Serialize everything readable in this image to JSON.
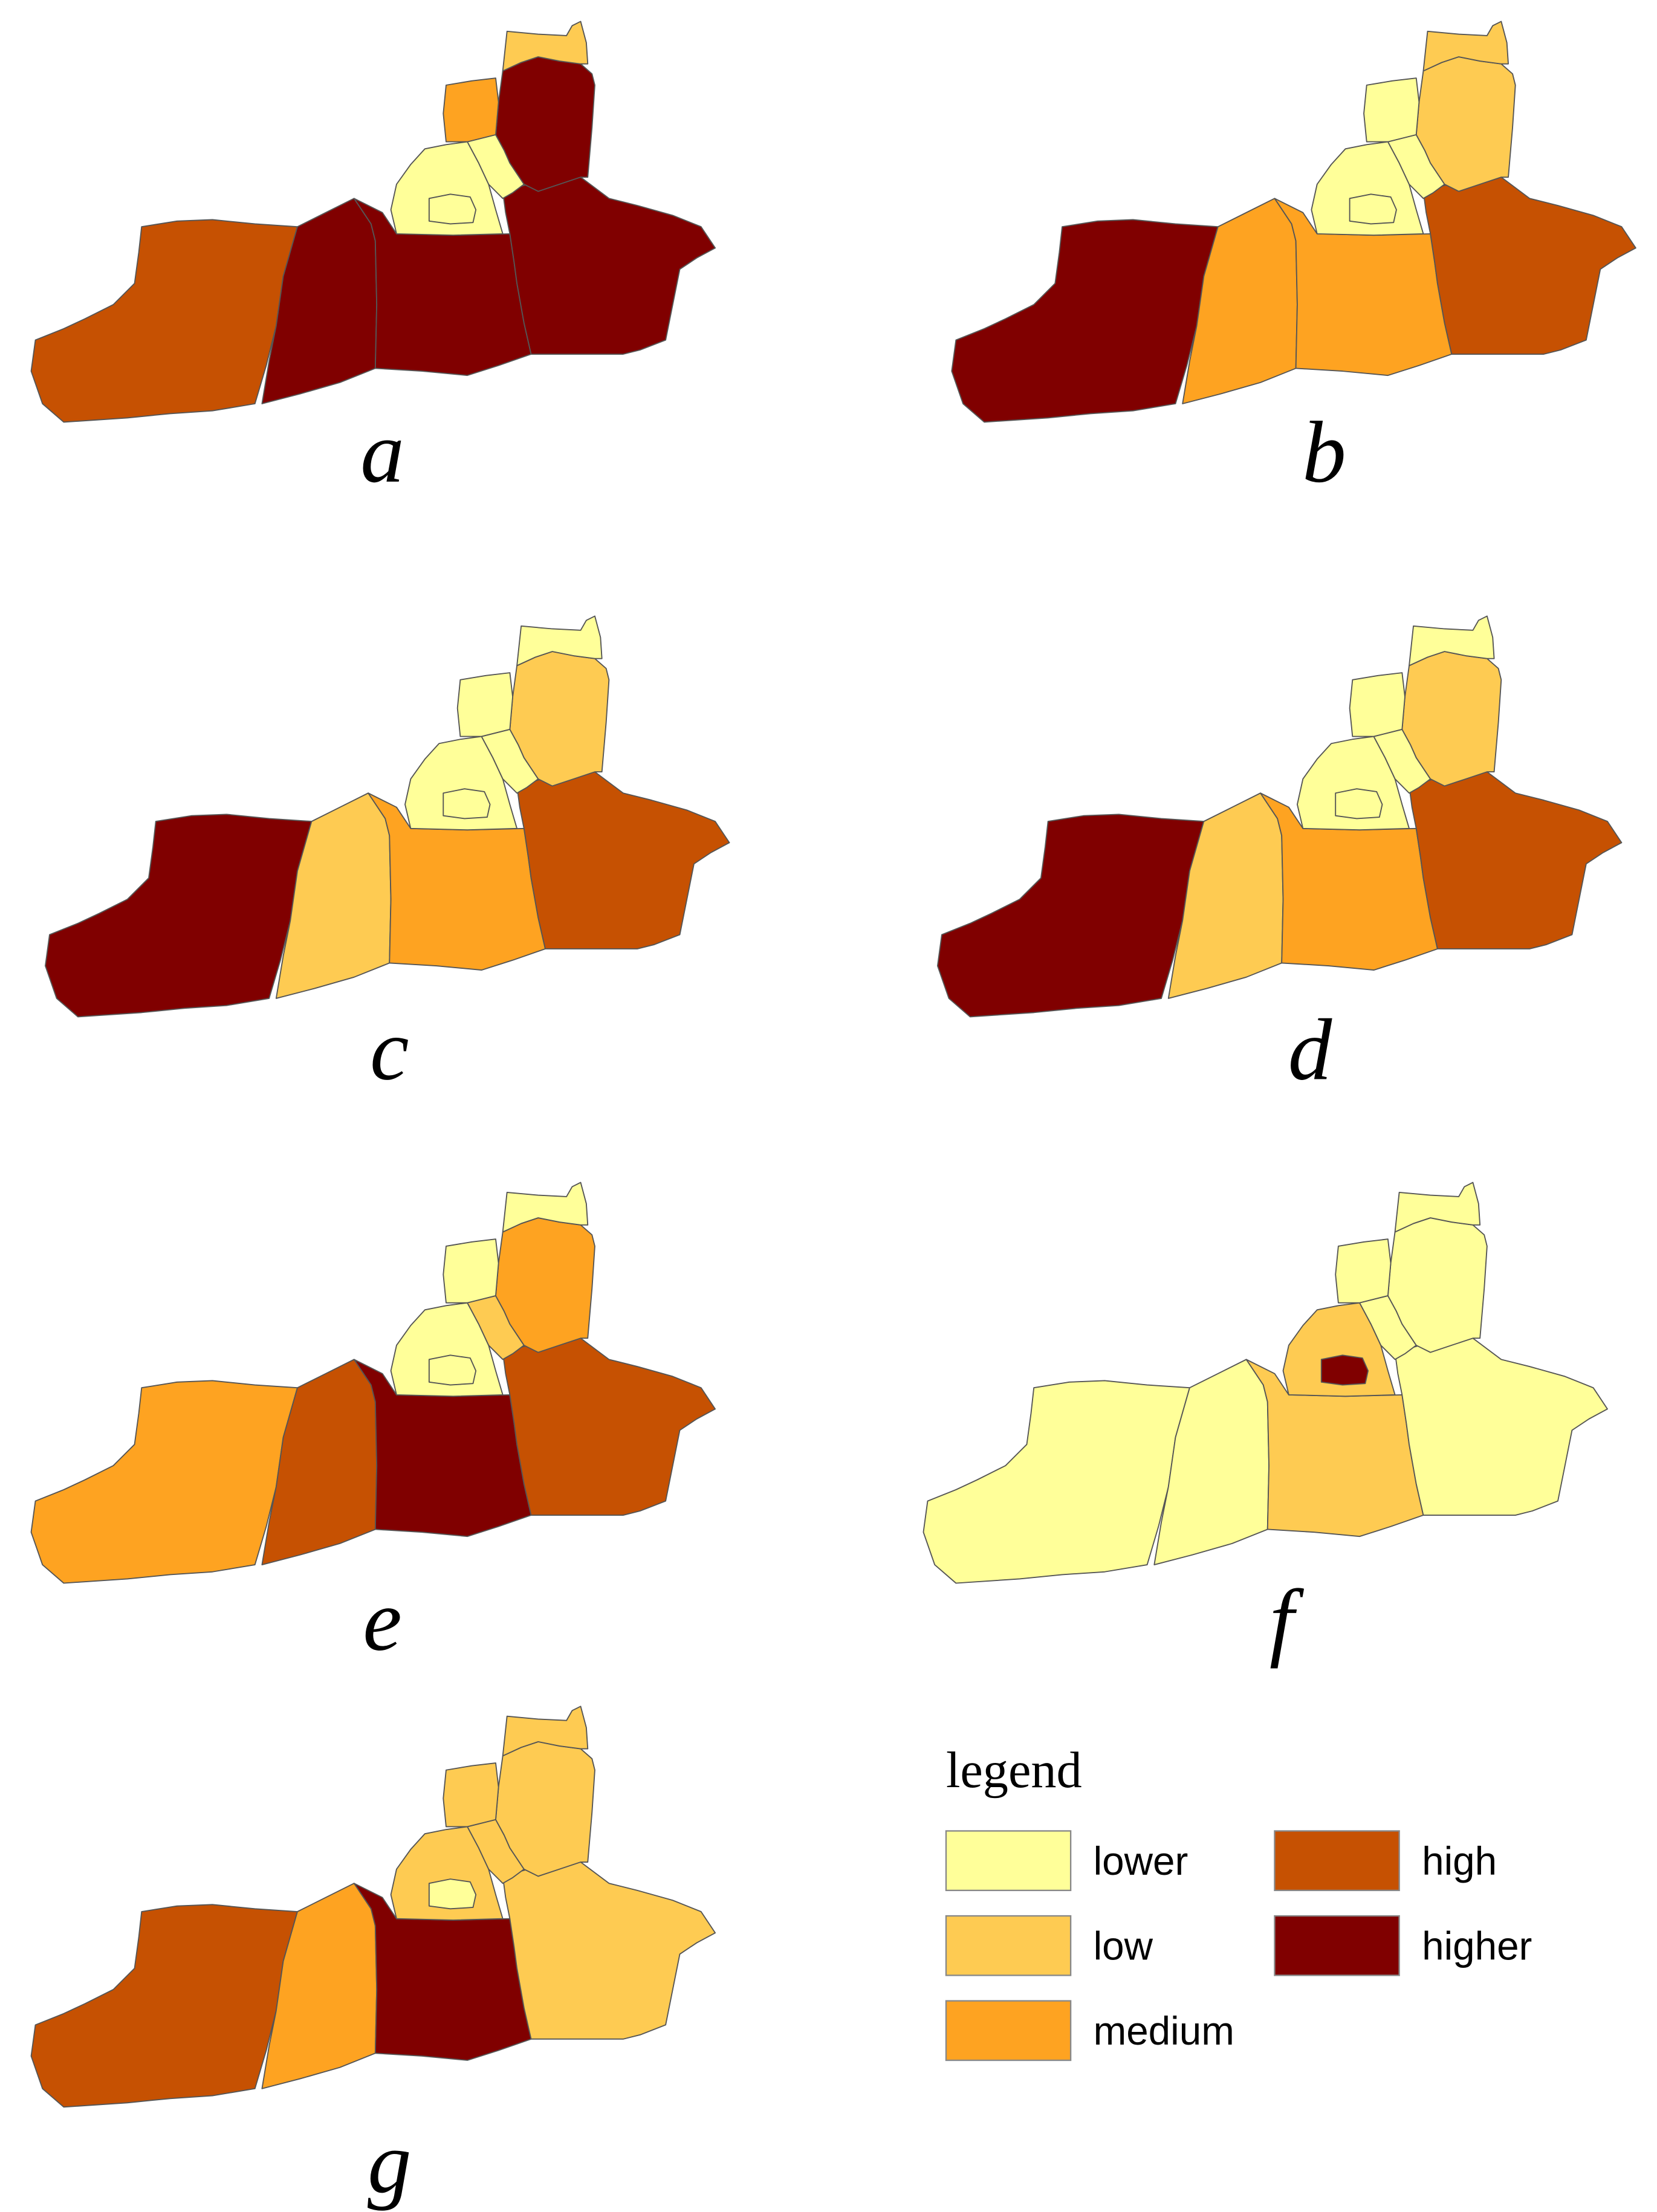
{
  "panels": [
    {
      "label": "a",
      "fills": [
        "#c65102",
        "#800000",
        "#800000",
        "#800000",
        "#ffff99",
        "#ffff99",
        "#800000",
        "#fecb52",
        "#fea321",
        "#ffff99"
      ]
    },
    {
      "label": "b",
      "fills": [
        "#800000",
        "#fea321",
        "#fea321",
        "#c65102",
        "#ffff99",
        "#ffff99",
        "#fecb52",
        "#fecb52",
        "#ffff99",
        "#ffff99"
      ]
    },
    {
      "label": "c",
      "fills": [
        "#800000",
        "#fecb52",
        "#fea321",
        "#c65102",
        "#ffff99",
        "#ffff99",
        "#fecb52",
        "#ffff99",
        "#ffff99",
        "#ffff99"
      ]
    },
    {
      "label": "d",
      "fills": [
        "#800000",
        "#fecb52",
        "#fea321",
        "#c65102",
        "#ffff99",
        "#ffff99",
        "#fecb52",
        "#ffff99",
        "#ffff99",
        "#ffff99"
      ]
    },
    {
      "label": "e",
      "fills": [
        "#fea321",
        "#c65102",
        "#800000",
        "#c65102",
        "#ffff99",
        "#fecb52",
        "#fea321",
        "#ffff99",
        "#ffff99",
        "#ffff99"
      ]
    },
    {
      "label": "f",
      "fills": [
        "#ffff99",
        "#ffff99",
        "#fecb52",
        "#ffff99",
        "#fecb52",
        "#ffff99",
        "#ffff99",
        "#ffff99",
        "#ffff99",
        "#800000"
      ]
    },
    {
      "label": "g",
      "fills": [
        "#c65102",
        "#fea321",
        "#800000",
        "#fecb52",
        "#fecb52",
        "#fecb52",
        "#fecb52",
        "#fecb52",
        "#fecb52",
        "#ffff99"
      ]
    }
  ],
  "legend": {
    "title": "legend",
    "items": [
      {
        "label": "lower",
        "color": "#ffff99"
      },
      {
        "label": "low",
        "color": "#fecb52"
      },
      {
        "label": "medium",
        "color": "#fea321"
      },
      {
        "label": "high",
        "color": "#c65102"
      },
      {
        "label": "higher",
        "color": "#800000"
      }
    ]
  }
}
